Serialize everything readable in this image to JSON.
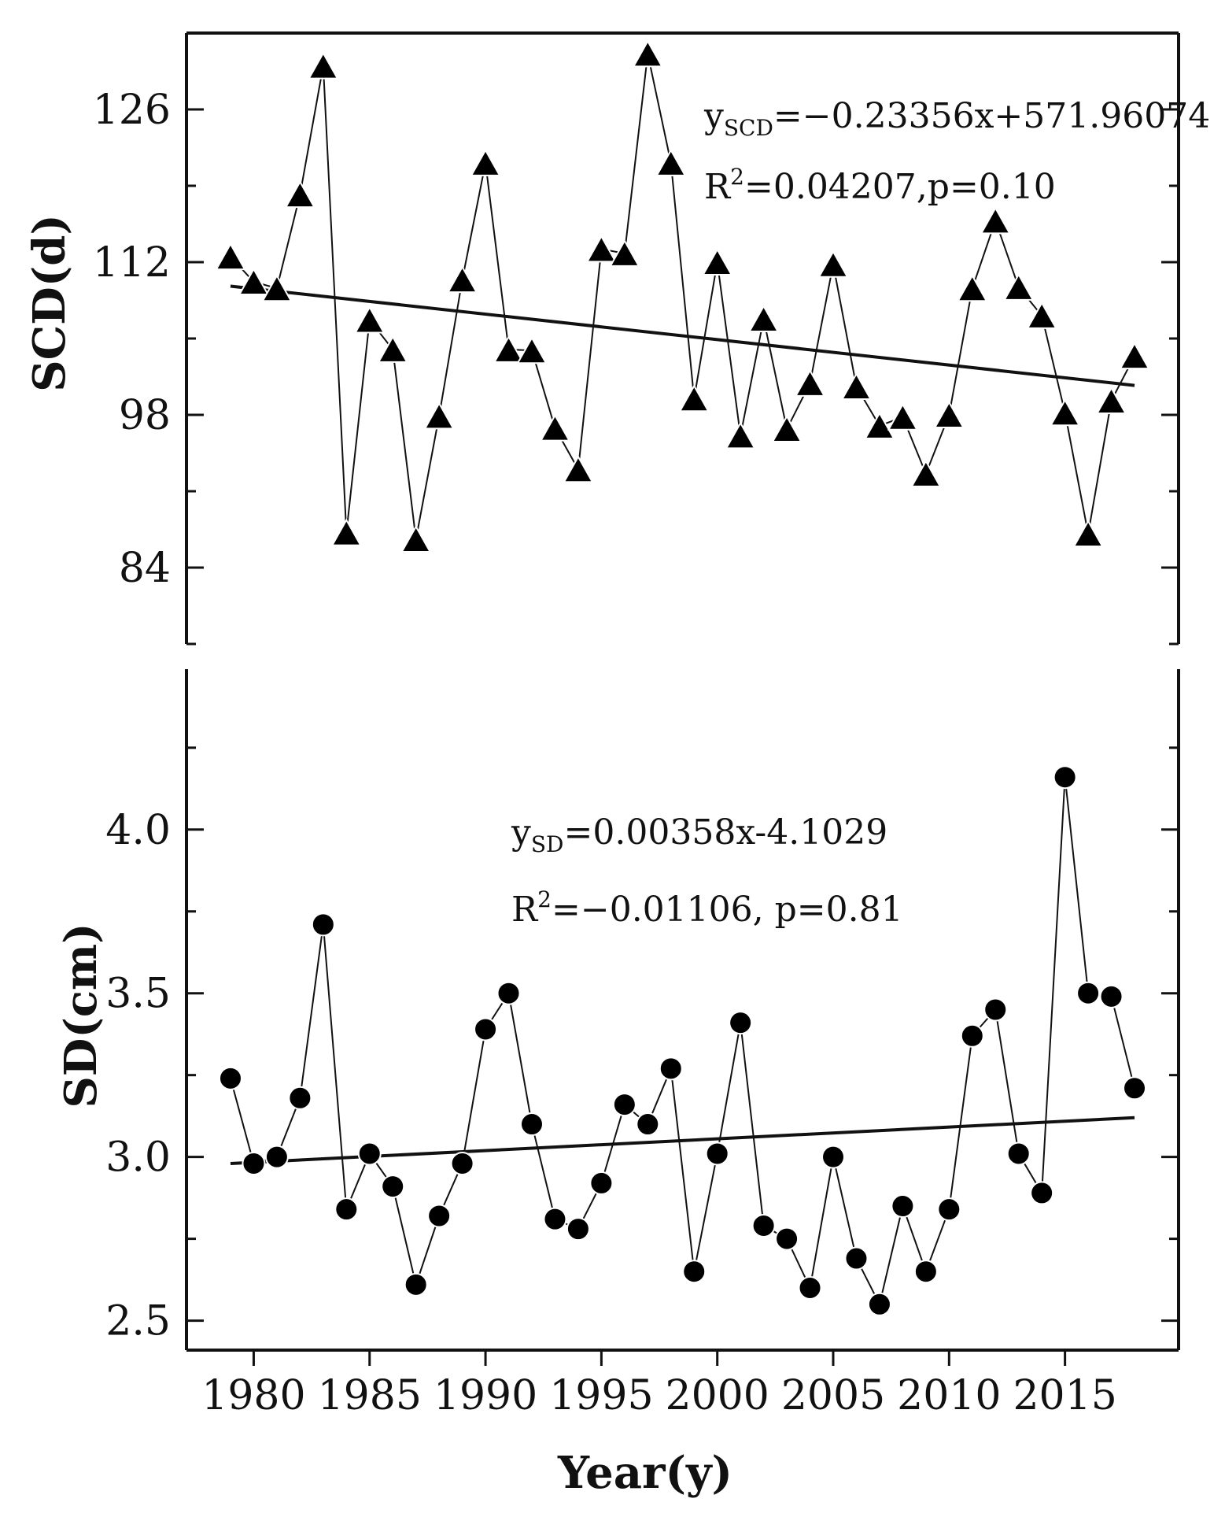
{
  "chart_data": [
    {
      "type": "line",
      "panel": "top",
      "ylabel": "SCD(d)",
      "xlabel": "",
      "ylim": [
        77,
        133
      ],
      "yticks": [
        84,
        98,
        112,
        126
      ],
      "xlim": [
        1977.1,
        2019.9
      ],
      "marker": "triangle",
      "series": [
        {
          "name": "SCD",
          "x": [
            1979,
            1980,
            1981,
            1982,
            1983,
            1984,
            1985,
            1986,
            1987,
            1988,
            1989,
            1990,
            1991,
            1992,
            1993,
            1994,
            1995,
            1996,
            1997,
            1998,
            1999,
            2000,
            2001,
            2002,
            2003,
            2004,
            2005,
            2006,
            2007,
            2008,
            2009,
            2010,
            2011,
            2012,
            2013,
            2014,
            2015,
            2016,
            2017,
            2018
          ],
          "values": [
            112.5,
            110.2,
            109.6,
            118.2,
            130.0,
            87.2,
            106.7,
            104.0,
            86.6,
            97.9,
            110.4,
            121.1,
            104.0,
            103.9,
            96.8,
            93.0,
            113.2,
            112.8,
            131.1,
            121.1,
            99.5,
            112.0,
            96.1,
            106.8,
            96.7,
            100.9,
            111.8,
            100.6,
            97.0,
            97.8,
            92.6,
            98.0,
            109.6,
            115.8,
            109.7,
            107.1,
            98.2,
            87.1,
            99.3,
            103.4
          ]
        }
      ],
      "trend": {
        "x": [
          1979,
          2018
        ],
        "values": [
          109.8,
          100.7
        ]
      },
      "annotations": {
        "line1_prefix": "y",
        "line1_sub": "SCD",
        "line1_rest": "=−0.23356x+571.96074",
        "line2_prefix": "R",
        "line2_sup": "2",
        "line2_rest": "=0.04207,p=0.10"
      }
    },
    {
      "type": "line",
      "panel": "bottom",
      "ylabel": "SD(cm)",
      "xlabel": "Year(y)",
      "ylim": [
        2.41,
        4.49
      ],
      "yticks": [
        2.5,
        3.0,
        3.5,
        4.0
      ],
      "yticklabels": [
        "2.5",
        "3.0",
        "3.5",
        "4.0"
      ],
      "xlim": [
        1977.1,
        2019.9
      ],
      "xticks": [
        1980,
        1985,
        1990,
        1995,
        2000,
        2005,
        2010,
        2015
      ],
      "marker": "circle",
      "series": [
        {
          "name": "SD",
          "x": [
            1979,
            1980,
            1981,
            1982,
            1983,
            1984,
            1985,
            1986,
            1987,
            1988,
            1989,
            1990,
            1991,
            1992,
            1993,
            1994,
            1995,
            1996,
            1997,
            1998,
            1999,
            2000,
            2001,
            2002,
            2003,
            2004,
            2005,
            2006,
            2007,
            2008,
            2009,
            2010,
            2011,
            2012,
            2013,
            2014,
            2015,
            2016,
            2017,
            2018
          ],
          "values": [
            3.24,
            2.98,
            3.0,
            3.18,
            3.71,
            2.84,
            3.01,
            2.91,
            2.61,
            2.82,
            2.98,
            3.39,
            3.5,
            3.1,
            2.81,
            2.78,
            2.92,
            3.16,
            3.1,
            3.27,
            2.65,
            3.01,
            3.41,
            2.79,
            2.75,
            2.6,
            3.0,
            2.69,
            2.55,
            2.85,
            2.65,
            2.84,
            3.37,
            3.45,
            3.01,
            2.89,
            4.16,
            3.5,
            3.49,
            3.21
          ]
        }
      ],
      "trend": {
        "x": [
          1979,
          2018
        ],
        "values": [
          2.98,
          3.12
        ]
      },
      "annotations": {
        "line1_prefix": "y",
        "line1_sub": "SD",
        "line1_rest": "=0.00358x-4.1029",
        "line2_prefix": "R",
        "line2_sup": "2",
        "line2_rest": "=−0.01106, p=0.81"
      }
    }
  ]
}
